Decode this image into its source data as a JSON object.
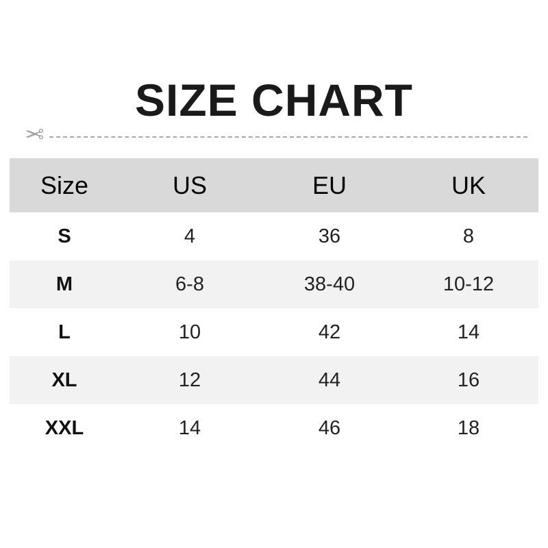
{
  "title": "SIZE CHART",
  "icons": {
    "cut_line": "scissors-icon"
  },
  "colors": {
    "header_bg": "#d9d9d9",
    "alt_row_bg": "#f2f2f2",
    "divider": "#a8a8a8"
  },
  "table": {
    "headers": [
      "Size",
      "US",
      "EU",
      "UK"
    ],
    "rows": [
      [
        "S",
        "4",
        "36",
        "8"
      ],
      [
        "M",
        "6-8",
        "38-40",
        "10-12"
      ],
      [
        "L",
        "10",
        "42",
        "14"
      ],
      [
        "XL",
        "12",
        "44",
        "16"
      ],
      [
        "XXL",
        "14",
        "46",
        "18"
      ]
    ]
  }
}
